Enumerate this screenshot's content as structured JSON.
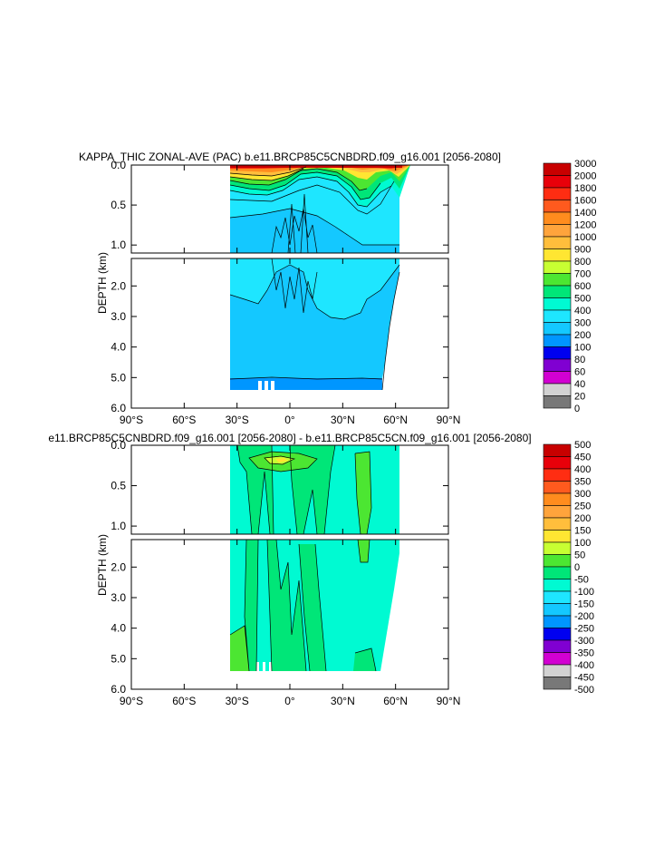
{
  "chart_data": [
    {
      "type": "heatmap",
      "title": "KAPPA_THIC ZONAL-AVE (PAC) b.e11.BRCP85C5CNBDRD.f09_g16.001 [2056-2080]",
      "xlabel": "",
      "ylabel": "DEPTH (km)",
      "x_ticks": [
        "90°S",
        "60°S",
        "30°S",
        "0°",
        "30°N",
        "60°N",
        "90°N"
      ],
      "x_range": [
        -90,
        90
      ],
      "y_ticks_upper": [
        "0.0",
        "0.5",
        "1.0"
      ],
      "y_range_upper": [
        0,
        1.1
      ],
      "y_ticks_lower": [
        "2.0",
        "3.0",
        "4.0",
        "5.0",
        "6.0"
      ],
      "y_range_lower": [
        1.1,
        6.0
      ],
      "colorbar_labels": [
        "3000",
        "2000",
        "1800",
        "1600",
        "1400",
        "1200",
        "1000",
        "900",
        "800",
        "700",
        "600",
        "500",
        "400",
        "300",
        "200",
        "100",
        "80",
        "60",
        "40",
        "20",
        "0"
      ],
      "colors": [
        "#c80000",
        "#e8000a",
        "#ff2d12",
        "#ff5a1e",
        "#ff8c1e",
        "#ffa43c",
        "#ffbe3c",
        "#ffe632",
        "#c8ff32",
        "#4ce632",
        "#00e678",
        "#00fad2",
        "#1ee6ff",
        "#14c8ff",
        "#0096ff",
        "#0000f0",
        "#8000d2",
        "#d200d2",
        "#d2d2d2",
        "#787878"
      ],
      "data_extent_x": [
        -35,
        63
      ]
    },
    {
      "type": "heatmap",
      "title": "e11.BRCP85C5CNBDRD.f09_g16.001 [2056-2080] - b.e11.BRCP85C5CN.f09_g16.001 [2056-2080]",
      "xlabel": "",
      "ylabel": "DEPTH (km)",
      "x_ticks": [
        "90°S",
        "60°S",
        "30°S",
        "0°",
        "30°N",
        "60°N",
        "90°N"
      ],
      "x_range": [
        -90,
        90
      ],
      "y_ticks_upper": [
        "0.0",
        "0.5",
        "1.0"
      ],
      "y_range_upper": [
        0,
        1.1
      ],
      "y_ticks_lower": [
        "2.0",
        "3.0",
        "4.0",
        "5.0",
        "6.0"
      ],
      "y_range_lower": [
        1.1,
        6.0
      ],
      "colorbar_labels": [
        "500",
        "450",
        "400",
        "350",
        "300",
        "250",
        "200",
        "150",
        "100",
        "50",
        "0",
        "-50",
        "-100",
        "-150",
        "-200",
        "-250",
        "-300",
        "-350",
        "-400",
        "-450",
        "-500"
      ],
      "colors": [
        "#c80000",
        "#e8000a",
        "#ff2d12",
        "#ff5a1e",
        "#ff8c1e",
        "#ffa43c",
        "#ffbe3c",
        "#ffe632",
        "#c8ff32",
        "#4ce632",
        "#00e678",
        "#00fad2",
        "#1ee6ff",
        "#14c8ff",
        "#0096ff",
        "#0000f0",
        "#8000d2",
        "#d200d2",
        "#d2d2d2",
        "#787878"
      ],
      "data_extent_x": [
        -35,
        63
      ]
    }
  ]
}
